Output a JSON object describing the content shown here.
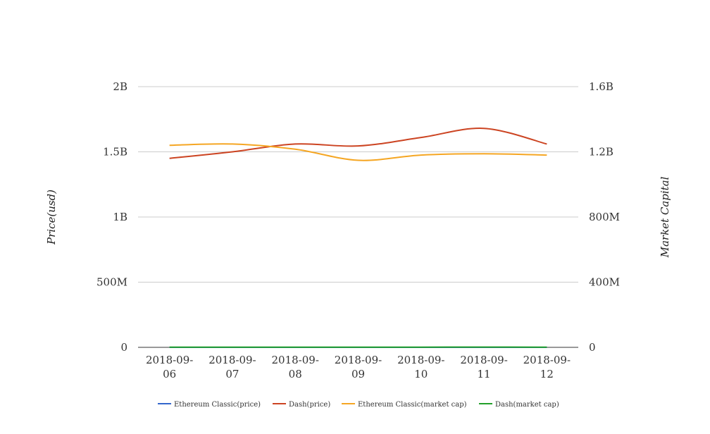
{
  "chart_data": {
    "type": "line",
    "categories": [
      "2018-09-06",
      "2018-09-07",
      "2018-09-08",
      "2018-09-09",
      "2018-09-10",
      "2018-09-11",
      "2018-09-12"
    ],
    "category_lines": [
      [
        "2018-09-",
        "06"
      ],
      [
        "2018-09-",
        "07"
      ],
      [
        "2018-09-",
        "08"
      ],
      [
        "2018-09-",
        "09"
      ],
      [
        "2018-09-",
        "10"
      ],
      [
        "2018-09-",
        "11"
      ],
      [
        "2018-09-",
        "12"
      ]
    ],
    "ylabel": "Price(usd)",
    "y2label": "Market Capital",
    "ylim": [
      0,
      2000000000
    ],
    "y2lim": [
      0,
      1600000000
    ],
    "yticks": [
      0,
      500000000,
      1000000000,
      1500000000,
      2000000000
    ],
    "ytick_labels": [
      "0",
      "500M",
      "1B",
      "1.5B",
      "2B"
    ],
    "y2ticks": [
      0,
      400000000,
      800000000,
      1200000000,
      1600000000
    ],
    "y2tick_labels": [
      "0",
      "400M",
      "800M",
      "1.2B",
      "1.6B"
    ],
    "grid": true,
    "legend_position": "bottom",
    "series": [
      {
        "name": "Ethereum Classic(price)",
        "axis": "left",
        "color": "#3366cc",
        "values": [
          11.5,
          11.8,
          11.2,
          10.9,
          11.1,
          11.3,
          11.0
        ]
      },
      {
        "name": "Dash(price)",
        "axis": "left",
        "color": "#cc4422",
        "values": [
          1450000000,
          1500000000,
          1560000000,
          1545000000,
          1610000000,
          1680000000,
          1560000000
        ]
      },
      {
        "name": "Ethereum Classic(market cap)",
        "axis": "right",
        "color": "#f5a623",
        "values": [
          1240000000,
          1248000000,
          1216000000,
          1148000000,
          1180000000,
          1188000000,
          1180000000
        ]
      },
      {
        "name": "Dash(market cap)",
        "axis": "right",
        "color": "#22a02a",
        "values": [
          1200000,
          1250000,
          1300000,
          1280000,
          1350000,
          1400000,
          1300000
        ]
      }
    ]
  }
}
